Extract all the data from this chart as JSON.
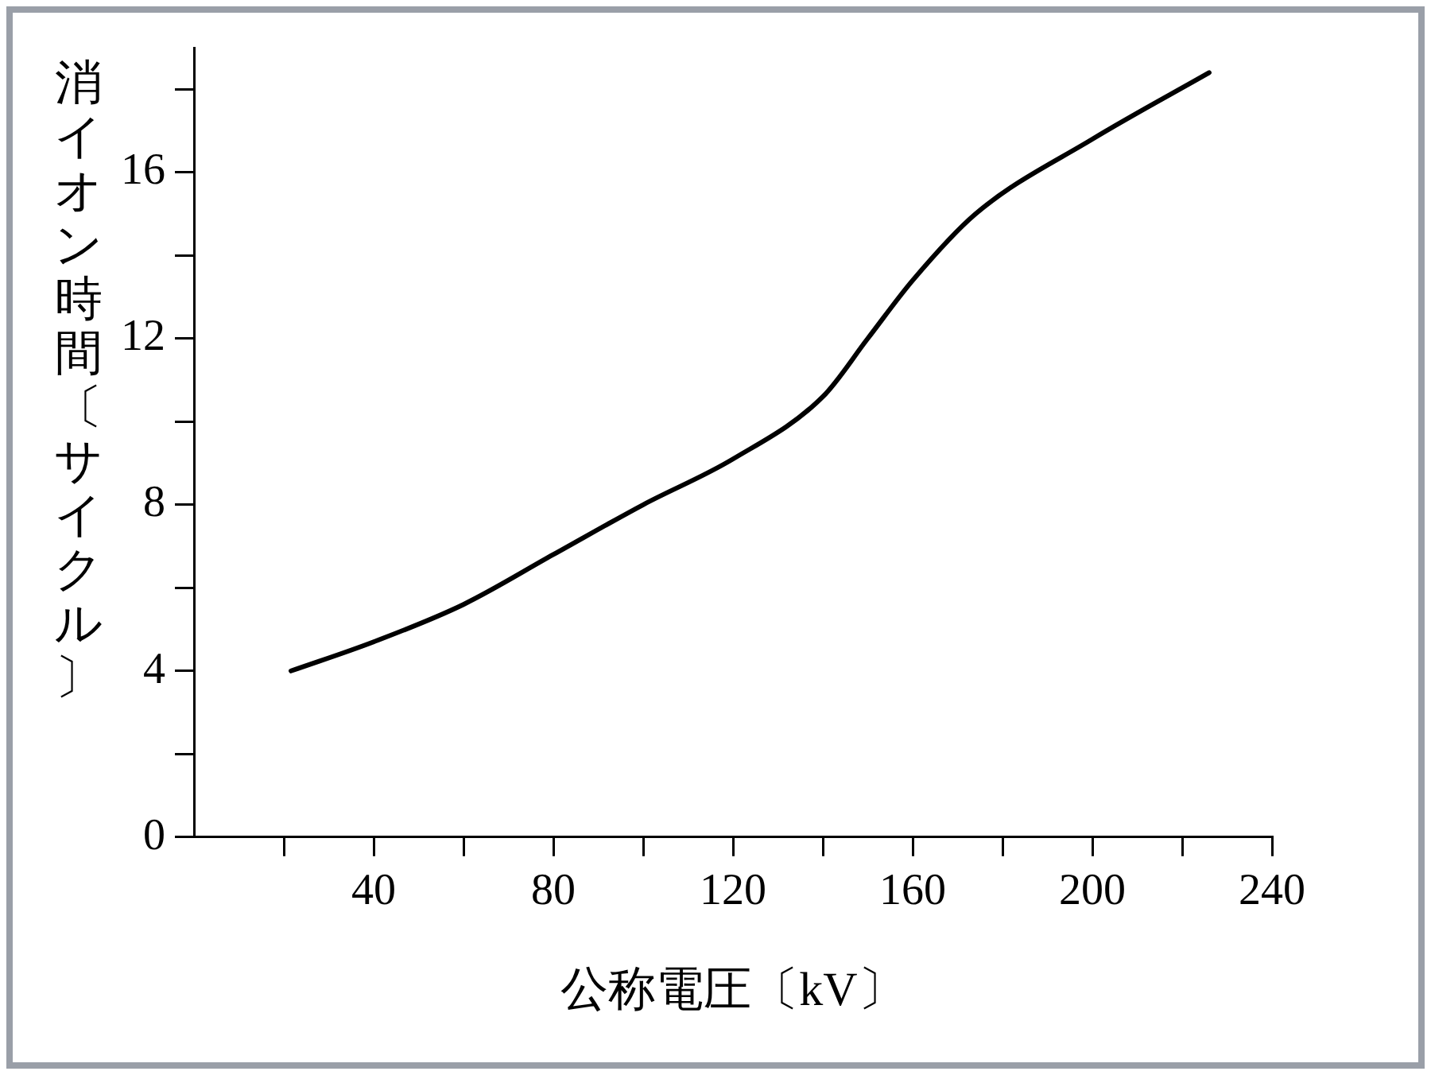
{
  "chart_data": {
    "type": "line",
    "xlabel": "公称電圧〔kV〕",
    "ylabel": "消イオン時間〔サイクル〕",
    "x": [
      21.6,
      40,
      60,
      80,
      100,
      120,
      140,
      150,
      160,
      174,
      200,
      226
    ],
    "series": [
      {
        "color": "#000000",
        "values": [
          4.0,
          4.7,
          5.6,
          6.8,
          8.0,
          9.1,
          10.6,
          12.0,
          13.4,
          15.0,
          16.8,
          18.4
        ]
      }
    ],
    "xlim": [
      0,
      240
    ],
    "xticks": [
      {
        "value": 20,
        "label": null
      },
      40,
      {
        "value": 60,
        "label": null
      },
      80,
      {
        "value": 100,
        "label": null
      },
      120,
      {
        "value": 140,
        "label": null
      },
      160,
      {
        "value": 180,
        "label": null
      },
      200,
      {
        "value": 220,
        "label": null
      },
      240
    ],
    "ylim": [
      0,
      19
    ],
    "yticks": [
      0,
      {
        "value": 2,
        "label": null
      },
      4,
      {
        "value": 6,
        "label": null
      },
      8,
      {
        "value": 10,
        "label": null
      },
      12,
      {
        "value": 14,
        "label": null
      },
      16,
      {
        "value": 18,
        "label": null
      }
    ],
    "grid": false,
    "legend": false,
    "marker": "none",
    "line_style": "solid"
  }
}
